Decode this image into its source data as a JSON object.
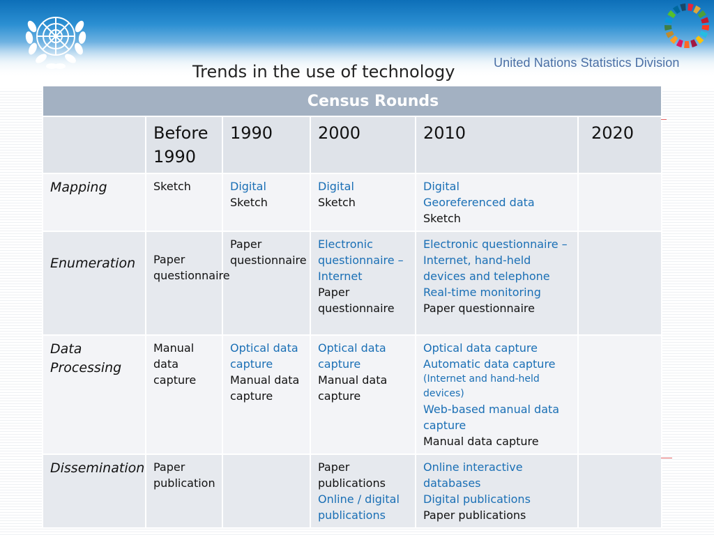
{
  "header": {
    "division": "United Nations Statistics Division",
    "title": "Trends in the use of technology",
    "logo_left": "un-emblem-icon",
    "logo_right": "sdg-wheel-icon"
  },
  "table": {
    "header": "Census Rounds",
    "columns": [
      "",
      "Before 1990",
      "1990",
      "2000",
      "2010",
      "2020"
    ],
    "rows": [
      {
        "label": "Mapping",
        "cells": [
          [
            {
              "t": "Sketch",
              "c": "black"
            }
          ],
          [
            {
              "t": "Digital",
              "c": "blue"
            },
            {
              "t": "Sketch",
              "c": "black"
            }
          ],
          [
            {
              "t": "Digital",
              "c": "blue"
            },
            {
              "t": "Sketch",
              "c": "black"
            }
          ],
          [
            {
              "t": "Digital",
              "c": "blue"
            },
            {
              "t": "Georeferenced data",
              "c": "blue"
            },
            {
              "t": "Sketch",
              "c": "black"
            }
          ],
          []
        ]
      },
      {
        "label": "Enumeration",
        "cells": [
          [
            {
              "t": "Paper questionnaire",
              "c": "black"
            }
          ],
          [
            {
              "t": "Paper questionnaire",
              "c": "black"
            }
          ],
          [
            {
              "t": "Electronic questionnaire – Internet",
              "c": "blue"
            },
            {
              "t": "Paper questionnaire",
              "c": "black"
            }
          ],
          [
            {
              "t": "Electronic questionnaire – Internet, hand-held devices and telephone",
              "c": "blue"
            },
            {
              "t": "Real-time monitoring",
              "c": "blue"
            },
            {
              "t": "Paper questionnaire",
              "c": "black"
            }
          ],
          []
        ]
      },
      {
        "label": "Data Processing",
        "cells": [
          [
            {
              "t": "Manual data capture",
              "c": "black"
            }
          ],
          [
            {
              "t": "Optical data capture",
              "c": "blue"
            },
            {
              "t": "Manual data  capture",
              "c": "black"
            }
          ],
          [
            {
              "t": "Optical data capture",
              "c": "blue"
            },
            {
              "t": "Manual data capture",
              "c": "black"
            }
          ],
          [
            {
              "t": "Optical data capture",
              "c": "blue"
            },
            {
              "t": "Automatic data capture",
              "c": "blue"
            },
            {
              "t": "(Internet and hand-held devices)",
              "c": "blue",
              "small": true
            },
            {
              "t": "Web-based manual data capture",
              "c": "blue"
            },
            {
              "t": "Manual data capture",
              "c": "black"
            }
          ],
          []
        ]
      },
      {
        "label": "Dissemination",
        "cells": [
          [
            {
              "t": "Paper publication",
              "c": "black"
            }
          ],
          [],
          [
            {
              "t": "Paper publications",
              "c": "black"
            },
            {
              "t": "Online / digital publications",
              "c": "blue"
            }
          ],
          [
            {
              "t": "Online interactive databases",
              "c": "blue"
            },
            {
              "t": "Digital publications",
              "c": "blue"
            },
            {
              "t": "Paper publications",
              "c": "black"
            }
          ],
          []
        ]
      }
    ]
  }
}
